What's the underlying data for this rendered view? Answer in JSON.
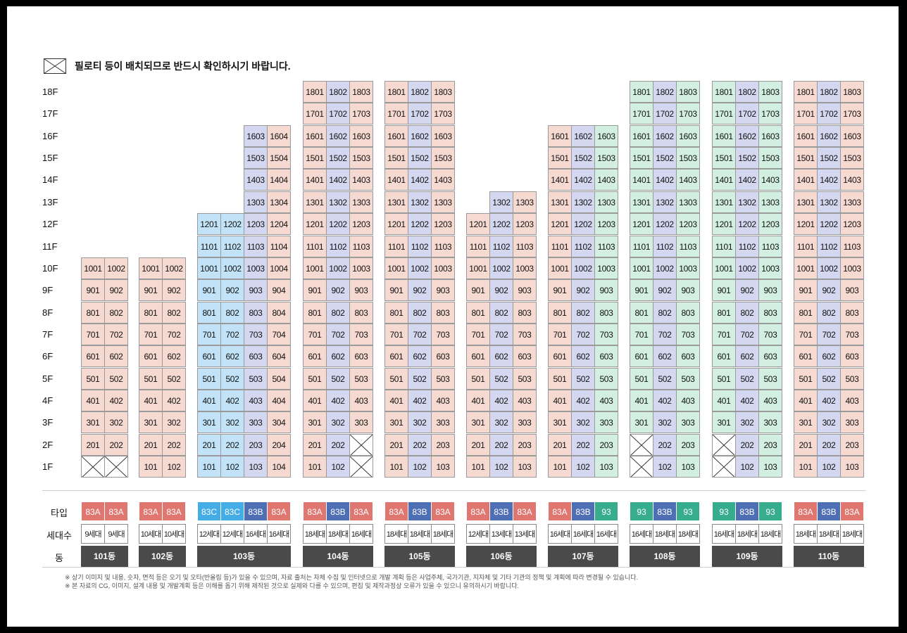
{
  "legend": {
    "text": "필로티 등이 배치되므로 반드시 확인하시기 바랍니다."
  },
  "floors": [
    "18F",
    "17F",
    "16F",
    "15F",
    "14F",
    "13F",
    "12F",
    "11F",
    "10F",
    "9F",
    "8F",
    "7F",
    "6F",
    "5F",
    "4F",
    "3F",
    "2F",
    "1F"
  ],
  "row_labels": {
    "type": "타입",
    "units": "세대수",
    "dong": "동"
  },
  "colors": {
    "83A": "#f6d9d0",
    "83B": "#d3d7ef",
    "83C": "#c2e3f7",
    "93": "#d2efe2",
    "badge_83A": "#e07670",
    "badge_83B": "#4f6fb5",
    "badge_83C": "#45ade5",
    "badge_93": "#37ad8e"
  },
  "buildings": [
    {
      "dong": "101동",
      "columns": [
        {
          "line": "01",
          "type": "83A",
          "units": "9세대",
          "top": 10,
          "piloti": [
            1
          ]
        },
        {
          "line": "02",
          "type": "83A",
          "units": "9세대",
          "top": 10,
          "piloti": [
            1
          ]
        }
      ]
    },
    {
      "dong": "102동",
      "columns": [
        {
          "line": "01",
          "type": "83A",
          "units": "10세대",
          "top": 10,
          "piloti": []
        },
        {
          "line": "02",
          "type": "83A",
          "units": "10세대",
          "top": 10,
          "piloti": []
        }
      ]
    },
    {
      "dong": "103동",
      "columns": [
        {
          "line": "01",
          "type": "83C",
          "units": "12세대",
          "top": 12,
          "piloti": []
        },
        {
          "line": "02",
          "type": "83C",
          "units": "12세대",
          "top": 12,
          "piloti": []
        },
        {
          "line": "03",
          "type": "83B",
          "units": "16세대",
          "top": 16,
          "piloti": []
        },
        {
          "line": "04",
          "type": "83A",
          "units": "16세대",
          "top": 16,
          "piloti": []
        }
      ]
    },
    {
      "dong": "104동",
      "columns": [
        {
          "line": "01",
          "type": "83A",
          "units": "18세대",
          "top": 18,
          "piloti": []
        },
        {
          "line": "02",
          "type": "83B",
          "units": "18세대",
          "top": 18,
          "piloti": []
        },
        {
          "line": "03",
          "type": "83A",
          "units": "16세대",
          "top": 18,
          "piloti": [
            1,
            2
          ]
        }
      ]
    },
    {
      "dong": "105동",
      "columns": [
        {
          "line": "01",
          "type": "83A",
          "units": "18세대",
          "top": 18,
          "piloti": []
        },
        {
          "line": "02",
          "type": "83B",
          "units": "18세대",
          "top": 18,
          "piloti": []
        },
        {
          "line": "03",
          "type": "83A",
          "units": "18세대",
          "top": 18,
          "piloti": []
        }
      ]
    },
    {
      "dong": "106동",
      "columns": [
        {
          "line": "01",
          "type": "83A",
          "units": "12세대",
          "top": 12,
          "piloti": []
        },
        {
          "line": "02",
          "type": "83B",
          "units": "13세대",
          "top": 13,
          "piloti": []
        },
        {
          "line": "03",
          "type": "83A",
          "units": "13세대",
          "top": 13,
          "piloti": []
        }
      ]
    },
    {
      "dong": "107동",
      "columns": [
        {
          "line": "01",
          "type": "83A",
          "units": "16세대",
          "top": 16,
          "piloti": []
        },
        {
          "line": "02",
          "type": "83B",
          "units": "16세대",
          "top": 16,
          "piloti": []
        },
        {
          "line": "03",
          "type": "93",
          "units": "16세대",
          "top": 16,
          "piloti": []
        }
      ]
    },
    {
      "dong": "108동",
      "columns": [
        {
          "line": "01",
          "type": "93",
          "units": "16세대",
          "top": 18,
          "piloti": [
            1,
            2
          ]
        },
        {
          "line": "02",
          "type": "83B",
          "units": "18세대",
          "top": 18,
          "piloti": []
        },
        {
          "line": "03",
          "type": "93",
          "units": "18세대",
          "top": 18,
          "piloti": []
        }
      ]
    },
    {
      "dong": "109동",
      "columns": [
        {
          "line": "01",
          "type": "93",
          "units": "16세대",
          "top": 18,
          "piloti": [
            1,
            2
          ]
        },
        {
          "line": "02",
          "type": "83B",
          "units": "18세대",
          "top": 18,
          "piloti": []
        },
        {
          "line": "03",
          "type": "93",
          "units": "18세대",
          "top": 18,
          "piloti": []
        }
      ]
    },
    {
      "dong": "110동",
      "columns": [
        {
          "line": "01",
          "type": "83A",
          "units": "18세대",
          "top": 18,
          "piloti": []
        },
        {
          "line": "02",
          "type": "83B",
          "units": "18세대",
          "top": 18,
          "piloti": []
        },
        {
          "line": "03",
          "type": "83A",
          "units": "18세대",
          "top": 18,
          "piloti": []
        }
      ]
    }
  ],
  "notes": [
    "※ 상기 이미지 및 내용, 숫자, 면적 등은 오기 및 오타(반올림 등)가 있을 수 있으며, 자료 출처는 자체 수집 및 인터넷으로 개발 계획 등은 사업주체, 국가기관, 지자체 및 기타 기관의 정책 및 계획에 따라 변경될 수 있습니다.",
    "※ 본 자료의 CG, 이미지, 설계 내용 및 개발계획 등은 이해를 돕기 위해 제작된 것으로 실제와 다를 수 있으며, 편집 및 제작과정상 오류가 있을 수 있으니 유의하시기 바랍니다."
  ]
}
